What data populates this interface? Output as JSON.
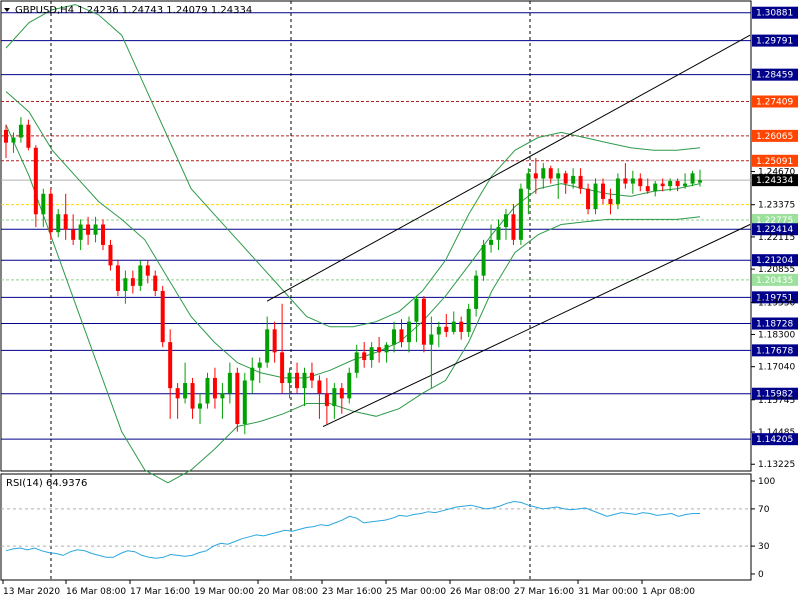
{
  "header": {
    "dropdown_icon": "triangle-down-icon",
    "title": "GBPUSD,H4  1.24236 1.24743 1.24079 1.24334"
  },
  "rsi": {
    "title": "RSI(14) 64.9376",
    "ticks": [
      "100",
      "70",
      "30",
      "0"
    ]
  },
  "colors": {
    "bull": "#00a000",
    "bear": "#ff0000",
    "band": "#2e9a49",
    "blue_level": "#00008b",
    "red_level": "#b22222",
    "yellow_level": "#ffd700",
    "rsi_line": "#2aa6e0",
    "trend": "#000000"
  },
  "chart_data": {
    "type": "candlestick",
    "symbol": "GBPUSD",
    "timeframe": "H4",
    "ylim": [
      1.13,
      1.313
    ],
    "y_ticks": [
      "1.30881",
      "1.29791",
      "1.28459",
      "1.27409",
      "1.26065",
      "1.25091",
      "1.24670",
      "1.24334",
      "1.23375",
      "1.22775",
      "1.22414",
      "1.22115",
      "1.21204",
      "1.20855",
      "1.20435",
      "1.19751",
      "1.19550",
      "1.18728",
      "1.18300",
      "1.17678",
      "1.17040",
      "1.15982",
      "1.15745",
      "1.14485",
      "1.14205",
      "1.13225"
    ],
    "x_ticks": [
      "13 Mar 2020",
      "16 Mar 08:00",
      "17 Mar 16:00",
      "19 Mar 00:00",
      "20 Mar 08:00",
      "23 Mar 16:00",
      "25 Mar 00:00",
      "26 Mar 08:00",
      "27 Mar 16:00",
      "31 Mar 00:00",
      "1 Apr 08:00"
    ],
    "blue_levels": [
      1.30881,
      1.29791,
      1.28459,
      1.22414,
      1.21204,
      1.19751,
      1.18728,
      1.17678,
      1.15982,
      1.14205
    ],
    "red_levels": [
      1.27409,
      1.26065,
      1.25091
    ],
    "yellow_levels": [
      1.23375
    ],
    "green_dashed_levels": [
      1.22775,
      1.20435
    ],
    "current_price": 1.24334,
    "candles": [
      [
        1.263,
        1.265,
        1.252,
        1.258
      ],
      [
        1.258,
        1.262,
        1.254,
        1.26
      ],
      [
        1.26,
        1.268,
        1.258,
        1.265
      ],
      [
        1.265,
        1.267,
        1.255,
        1.256
      ],
      [
        1.256,
        1.257,
        1.225,
        1.23
      ],
      [
        1.23,
        1.24,
        1.225,
        1.238
      ],
      [
        1.238,
        1.24,
        1.22,
        1.223
      ],
      [
        1.223,
        1.232,
        1.221,
        1.23
      ],
      [
        1.23,
        1.238,
        1.22,
        1.224
      ],
      [
        1.224,
        1.23,
        1.218,
        1.22
      ],
      [
        1.22,
        1.228,
        1.216,
        1.226
      ],
      [
        1.226,
        1.229,
        1.218,
        1.222
      ],
      [
        1.222,
        1.229,
        1.219,
        1.226
      ],
      [
        1.226,
        1.228,
        1.216,
        1.218
      ],
      [
        1.218,
        1.22,
        1.208,
        1.21
      ],
      [
        1.21,
        1.212,
        1.198,
        1.2
      ],
      [
        1.2,
        1.208,
        1.195,
        1.205
      ],
      [
        1.205,
        1.208,
        1.199,
        1.202
      ],
      [
        1.202,
        1.212,
        1.2,
        1.21
      ],
      [
        1.21,
        1.212,
        1.203,
        1.206
      ],
      [
        1.206,
        1.208,
        1.198,
        1.2
      ],
      [
        1.2,
        1.202,
        1.178,
        1.18
      ],
      [
        1.18,
        1.185,
        1.15,
        1.162
      ],
      [
        1.162,
        1.164,
        1.15,
        1.158
      ],
      [
        1.158,
        1.172,
        1.156,
        1.164
      ],
      [
        1.164,
        1.166,
        1.15,
        1.154
      ],
      [
        1.154,
        1.16,
        1.148,
        1.156
      ],
      [
        1.156,
        1.168,
        1.154,
        1.166
      ],
      [
        1.166,
        1.17,
        1.154,
        1.158
      ],
      [
        1.158,
        1.164,
        1.15,
        1.16
      ],
      [
        1.16,
        1.172,
        1.156,
        1.168
      ],
      [
        1.168,
        1.17,
        1.145,
        1.148
      ],
      [
        1.148,
        1.168,
        1.144,
        1.165
      ],
      [
        1.165,
        1.174,
        1.16,
        1.17
      ],
      [
        1.17,
        1.174,
        1.164,
        1.172
      ],
      [
        1.172,
        1.19,
        1.17,
        1.185
      ],
      [
        1.185,
        1.188,
        1.172,
        1.176
      ],
      [
        1.176,
        1.195,
        1.16,
        1.164
      ],
      [
        1.164,
        1.17,
        1.158,
        1.168
      ],
      [
        1.168,
        1.172,
        1.16,
        1.162
      ],
      [
        1.162,
        1.17,
        1.155,
        1.168
      ],
      [
        1.168,
        1.172,
        1.162,
        1.165
      ],
      [
        1.165,
        1.167,
        1.15,
        1.16
      ],
      [
        1.16,
        1.166,
        1.148,
        1.155
      ],
      [
        1.155,
        1.164,
        1.15,
        1.162
      ],
      [
        1.162,
        1.164,
        1.152,
        1.158
      ],
      [
        1.158,
        1.17,
        1.156,
        1.168
      ],
      [
        1.168,
        1.179,
        1.166,
        1.176
      ],
      [
        1.176,
        1.18,
        1.17,
        1.173
      ],
      [
        1.173,
        1.18,
        1.17,
        1.178
      ],
      [
        1.178,
        1.182,
        1.172,
        1.176
      ],
      [
        1.176,
        1.18,
        1.172,
        1.179
      ],
      [
        1.179,
        1.188,
        1.176,
        1.185
      ],
      [
        1.185,
        1.189,
        1.178,
        1.18
      ],
      [
        1.18,
        1.19,
        1.176,
        1.188
      ],
      [
        1.188,
        1.198,
        1.18,
        1.197
      ],
      [
        1.197,
        1.198,
        1.176,
        1.179
      ],
      [
        1.179,
        1.19,
        1.162,
        1.183
      ],
      [
        1.183,
        1.188,
        1.178,
        1.186
      ],
      [
        1.186,
        1.191,
        1.182,
        1.184
      ],
      [
        1.184,
        1.192,
        1.183,
        1.188
      ],
      [
        1.188,
        1.19,
        1.181,
        1.184
      ],
      [
        1.184,
        1.195,
        1.182,
        1.193
      ],
      [
        1.193,
        1.208,
        1.19,
        1.206
      ],
      [
        1.206,
        1.22,
        1.204,
        1.218
      ],
      [
        1.218,
        1.226,
        1.215,
        1.22
      ],
      [
        1.22,
        1.228,
        1.216,
        1.225
      ],
      [
        1.225,
        1.232,
        1.22,
        1.23
      ],
      [
        1.23,
        1.234,
        1.218,
        1.22
      ],
      [
        1.22,
        1.242,
        1.218,
        1.24
      ],
      [
        1.24,
        1.248,
        1.23,
        1.246
      ],
      [
        1.246,
        1.252,
        1.238,
        1.244
      ],
      [
        1.244,
        1.25,
        1.24,
        1.248
      ],
      [
        1.248,
        1.249,
        1.242,
        1.244
      ],
      [
        1.244,
        1.248,
        1.236,
        1.246
      ],
      [
        1.246,
        1.247,
        1.238,
        1.242
      ],
      [
        1.242,
        1.248,
        1.24,
        1.245
      ],
      [
        1.245,
        1.248,
        1.238,
        1.24
      ],
      [
        1.24,
        1.242,
        1.23,
        1.232
      ],
      [
        1.232,
        1.244,
        1.23,
        1.242
      ],
      [
        1.242,
        1.244,
        1.234,
        1.236
      ],
      [
        1.236,
        1.24,
        1.23,
        1.234
      ],
      [
        1.234,
        1.246,
        1.232,
        1.244
      ],
      [
        1.244,
        1.25,
        1.24,
        1.242
      ],
      [
        1.242,
        1.247,
        1.238,
        1.244
      ],
      [
        1.244,
        1.246,
        1.239,
        1.241
      ],
      [
        1.241,
        1.244,
        1.238,
        1.239
      ],
      [
        1.239,
        1.243,
        1.237,
        1.242
      ],
      [
        1.242,
        1.244,
        1.239,
        1.241
      ],
      [
        1.241,
        1.244,
        1.239,
        1.243
      ],
      [
        1.243,
        1.244,
        1.239,
        1.241
      ],
      [
        1.241,
        1.246,
        1.24,
        1.242
      ],
      [
        1.242,
        1.247,
        1.241,
        1.246
      ],
      [
        1.2424,
        1.2474,
        1.2408,
        1.2433
      ]
    ],
    "bollinger_upper": [
      1.295,
      1.305,
      1.31,
      1.312,
      1.308,
      1.3,
      1.28,
      1.26,
      1.24,
      1.23,
      1.22,
      1.21,
      1.2,
      1.19,
      1.186,
      1.186,
      1.188,
      1.192,
      1.2,
      1.212,
      1.23,
      1.245,
      1.255,
      1.26,
      1.262,
      1.26,
      1.258,
      1.256,
      1.255,
      1.255,
      1.256
    ],
    "bollinger_middle": [
      1.278,
      1.27,
      1.255,
      1.245,
      1.235,
      1.228,
      1.22,
      1.205,
      1.19,
      1.18,
      1.172,
      1.168,
      1.166,
      1.166,
      1.169,
      1.173,
      1.176,
      1.18,
      1.188,
      1.198,
      1.21,
      1.222,
      1.233,
      1.24,
      1.242,
      1.24,
      1.238,
      1.237,
      1.239,
      1.24,
      1.242
    ],
    "bollinger_lower": [
      1.265,
      1.245,
      1.22,
      1.195,
      1.17,
      1.145,
      1.13,
      1.125,
      1.13,
      1.138,
      1.147,
      1.149,
      1.152,
      1.156,
      1.156,
      1.153,
      1.151,
      1.154,
      1.16,
      1.165,
      1.18,
      1.2,
      1.215,
      1.222,
      1.226,
      1.227,
      1.228,
      1.228,
      1.228,
      1.228,
      1.229
    ],
    "channel_upper": [
      [
        1.196,
        267
      ],
      [
        1.3,
        750
      ]
    ],
    "channel_lower": [
      [
        1.147,
        323
      ],
      [
        1.226,
        750
      ]
    ],
    "rsi_values": [
      25,
      27,
      28,
      26,
      28,
      25,
      23,
      22,
      20,
      24,
      26,
      25,
      22,
      20,
      18,
      18,
      22,
      25,
      24,
      20,
      18,
      17,
      18,
      21,
      20,
      19,
      20,
      23,
      25,
      30,
      33,
      32,
      35,
      38,
      40,
      42,
      41,
      43,
      45,
      47,
      46,
      48,
      50,
      51,
      53,
      52,
      55,
      58,
      62,
      60,
      55,
      56,
      57,
      58,
      60,
      63,
      62,
      64,
      65,
      67,
      66,
      68,
      70,
      72,
      73,
      74,
      72,
      70,
      71,
      73,
      76,
      78,
      77,
      74,
      72,
      70,
      71,
      72,
      70,
      69,
      70,
      71,
      68,
      65,
      62,
      64,
      66,
      65,
      64,
      66,
      65,
      63,
      64,
      65,
      62,
      64,
      65,
      65
    ]
  }
}
